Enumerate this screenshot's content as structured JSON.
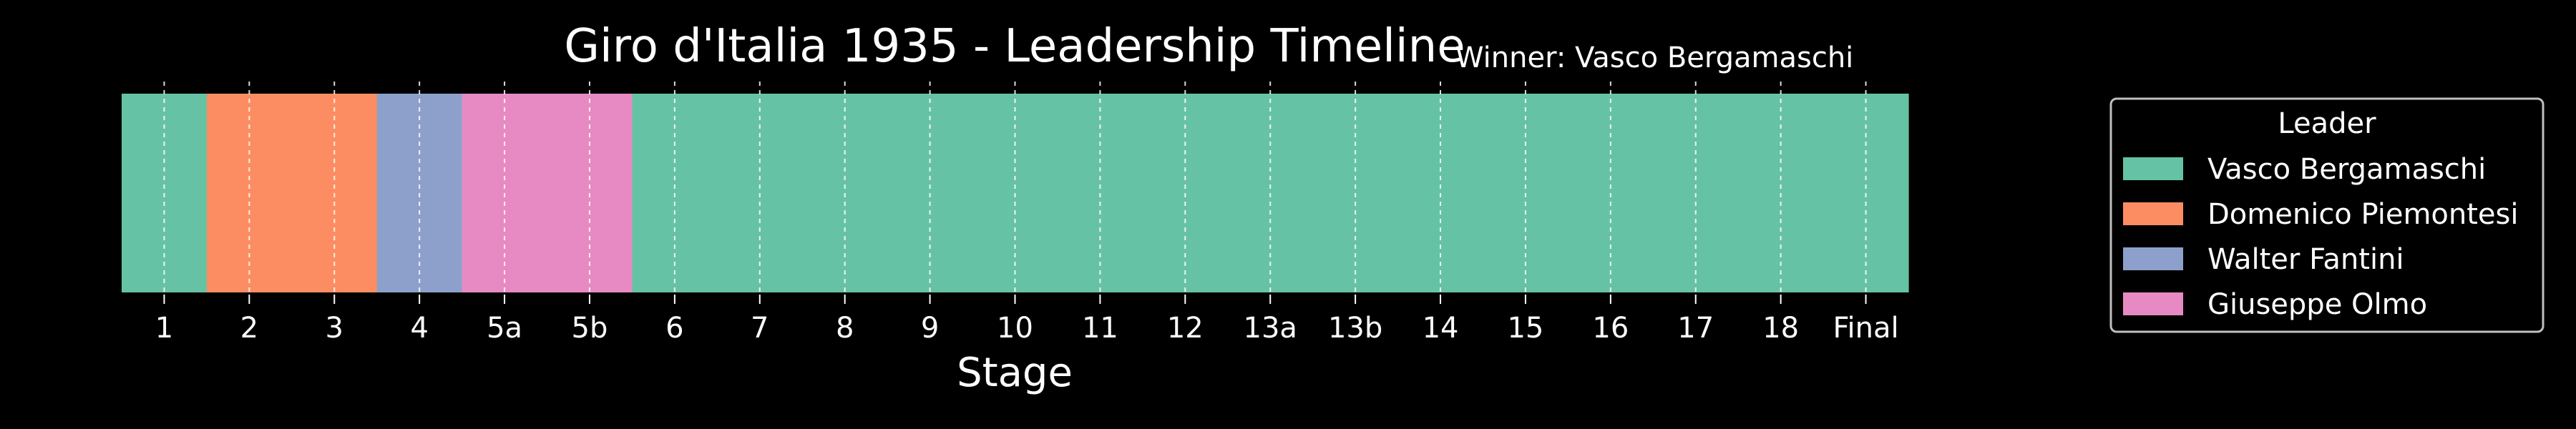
{
  "chart_data": {
    "type": "bar",
    "title": "Giro d'Italia 1935 - Leadership Timeline",
    "annotation": "Winner: Vasco Bergamaschi",
    "xlabel": "Stage",
    "ylabel": "",
    "grid": "vertical dashed",
    "categories": [
      "1",
      "2",
      "3",
      "4",
      "5a",
      "5b",
      "6",
      "7",
      "8",
      "9",
      "10",
      "11",
      "12",
      "13a",
      "13b",
      "14",
      "15",
      "16",
      "17",
      "18",
      "Final"
    ],
    "leaders": [
      "Vasco Bergamaschi",
      "Domenico Piemontesi",
      "Domenico Piemontesi",
      "Walter Fantini",
      "Giuseppe Olmo",
      "Giuseppe Olmo",
      "Vasco Bergamaschi",
      "Vasco Bergamaschi",
      "Vasco Bergamaschi",
      "Vasco Bergamaschi",
      "Vasco Bergamaschi",
      "Vasco Bergamaschi",
      "Vasco Bergamaschi",
      "Vasco Bergamaschi",
      "Vasco Bergamaschi",
      "Vasco Bergamaschi",
      "Vasco Bergamaschi",
      "Vasco Bergamaschi",
      "Vasco Bergamaschi",
      "Vasco Bergamaschi",
      "Vasco Bergamaschi"
    ],
    "legend": {
      "title": "Leader",
      "placement": "right",
      "entries": [
        {
          "name": "Vasco Bergamaschi",
          "color": "#66c2a5"
        },
        {
          "name": "Domenico Piemontesi",
          "color": "#fc8d62"
        },
        {
          "name": "Walter Fantini",
          "color": "#8da0cb"
        },
        {
          "name": "Giuseppe Olmo",
          "color": "#e78ac3"
        }
      ]
    }
  }
}
